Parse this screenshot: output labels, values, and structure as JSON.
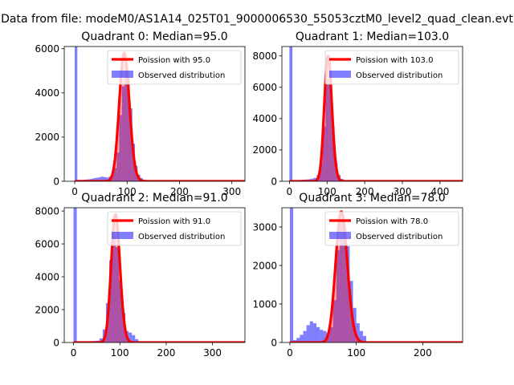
{
  "suptitle": "Data from file: modeM0/AS1A14_025T01_9000006530_55053cztM0_level2_quad_clean.evt",
  "colors": {
    "poisson_line": "#ff0000",
    "poisson_fill": "#ff0000",
    "observed": "#0000ff",
    "axis": "#000000"
  },
  "chart_data": [
    {
      "type": "bar",
      "title": "Quadrant 0: Median=95.0",
      "xlim": [
        -20,
        325
      ],
      "ylim": [
        0,
        6100
      ],
      "xticks": [
        0,
        100,
        200,
        300
      ],
      "yticks": [
        0,
        2000,
        4000,
        6000
      ],
      "legend": {
        "placement": "top-right",
        "entries": [
          "Poission with 95.0",
          "Observed distribution"
        ]
      },
      "poisson_mean": 95.0,
      "poisson_peak": 5800,
      "observed_bins": [
        [
          0,
          6100
        ],
        [
          5,
          60
        ],
        [
          10,
          60
        ],
        [
          15,
          70
        ],
        [
          20,
          80
        ],
        [
          25,
          90
        ],
        [
          30,
          110
        ],
        [
          35,
          140
        ],
        [
          40,
          160
        ],
        [
          45,
          180
        ],
        [
          50,
          210
        ],
        [
          55,
          190
        ],
        [
          60,
          170
        ],
        [
          65,
          220
        ],
        [
          70,
          350
        ],
        [
          75,
          600
        ],
        [
          80,
          1300
        ],
        [
          85,
          3000
        ],
        [
          90,
          4300
        ],
        [
          95,
          5000
        ],
        [
          100,
          4700
        ],
        [
          105,
          3300
        ],
        [
          110,
          1700
        ],
        [
          115,
          700
        ],
        [
          120,
          300
        ],
        [
          125,
          150
        ],
        [
          130,
          80
        ],
        [
          135,
          40
        ],
        [
          140,
          30
        ]
      ]
    },
    {
      "type": "bar",
      "title": "Quadrant 1: Median=103.0",
      "xlim": [
        -20,
        460
      ],
      "ylim": [
        0,
        8600
      ],
      "xticks": [
        0,
        100,
        200,
        300,
        400
      ],
      "yticks": [
        0,
        2000,
        4000,
        6000,
        8000
      ],
      "legend": {
        "placement": "top-right",
        "entries": [
          "Poission with 103.0",
          "Observed distribution"
        ]
      },
      "poisson_mean": 103.0,
      "poisson_peak": 8000,
      "observed_bins": [
        [
          0,
          8600
        ],
        [
          8,
          60
        ],
        [
          16,
          70
        ],
        [
          24,
          80
        ],
        [
          32,
          100
        ],
        [
          40,
          110
        ],
        [
          48,
          130
        ],
        [
          56,
          160
        ],
        [
          64,
          220
        ],
        [
          72,
          400
        ],
        [
          80,
          1200
        ],
        [
          88,
          3500
        ],
        [
          96,
          6500
        ],
        [
          104,
          6200
        ],
        [
          112,
          3500
        ],
        [
          120,
          1200
        ],
        [
          128,
          400
        ],
        [
          136,
          150
        ],
        [
          144,
          60
        ]
      ]
    },
    {
      "type": "bar",
      "title": "Quadrant 2: Median=91.0",
      "xlim": [
        -20,
        370
      ],
      "ylim": [
        0,
        8200
      ],
      "xticks": [
        0,
        100,
        200,
        300
      ],
      "yticks": [
        0,
        2000,
        4000,
        6000,
        8000
      ],
      "legend": {
        "placement": "top-right",
        "entries": [
          "Poission with 91.0",
          "Observed distribution"
        ]
      },
      "poisson_mean": 91.0,
      "poisson_peak": 7800,
      "observed_bins": [
        [
          0,
          8200
        ],
        [
          7,
          40
        ],
        [
          14,
          50
        ],
        [
          21,
          60
        ],
        [
          28,
          60
        ],
        [
          35,
          70
        ],
        [
          42,
          90
        ],
        [
          49,
          110
        ],
        [
          56,
          250
        ],
        [
          63,
          800
        ],
        [
          70,
          2400
        ],
        [
          77,
          5000
        ],
        [
          84,
          6500
        ],
        [
          91,
          5800
        ],
        [
          98,
          3800
        ],
        [
          105,
          1800
        ],
        [
          112,
          700
        ],
        [
          119,
          600
        ],
        [
          126,
          450
        ],
        [
          133,
          200
        ],
        [
          140,
          80
        ]
      ]
    },
    {
      "type": "bar",
      "title": "Quadrant 3: Median=78.0",
      "xlim": [
        -12,
        260
      ],
      "ylim": [
        0,
        3500
      ],
      "xticks": [
        0,
        100,
        200
      ],
      "yticks": [
        0,
        1000,
        2000,
        3000
      ],
      "legend": {
        "placement": "top-right",
        "entries": [
          "Poission with 78.0",
          "Observed distribution"
        ]
      },
      "poisson_mean": 78.0,
      "poisson_peak": 3400,
      "observed_bins": [
        [
          0,
          3500
        ],
        [
          5,
          60
        ],
        [
          10,
          120
        ],
        [
          15,
          200
        ],
        [
          20,
          300
        ],
        [
          25,
          450
        ],
        [
          30,
          550
        ],
        [
          35,
          500
        ],
        [
          40,
          400
        ],
        [
          45,
          330
        ],
        [
          50,
          300
        ],
        [
          55,
          250
        ],
        [
          60,
          400
        ],
        [
          65,
          1100
        ],
        [
          70,
          2400
        ],
        [
          75,
          3200
        ],
        [
          80,
          3000
        ],
        [
          85,
          2500
        ],
        [
          90,
          1600
        ],
        [
          95,
          900
        ],
        [
          100,
          500
        ],
        [
          105,
          300
        ],
        [
          110,
          170
        ]
      ]
    }
  ]
}
